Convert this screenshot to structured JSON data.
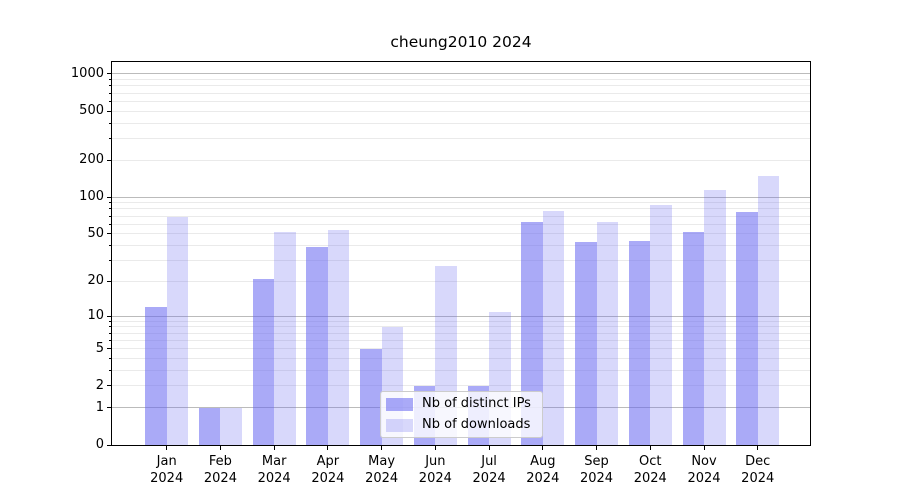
{
  "title": "cheung2010 2024",
  "chart_data": {
    "type": "bar",
    "title": "cheung2010 2024",
    "categories": [
      "Jan 2024",
      "Feb 2024",
      "Mar 2024",
      "Apr 2024",
      "May 2024",
      "Jun 2024",
      "Jul 2024",
      "Aug 2024",
      "Sep 2024",
      "Oct 2024",
      "Nov 2024",
      "Dec 2024"
    ],
    "series": [
      {
        "name": "Nb of distinct IPs",
        "color": "rgba(100,100,240,0.55)",
        "values": [
          12,
          1,
          21,
          39,
          5,
          2,
          2,
          63,
          43,
          44,
          52,
          75
        ]
      },
      {
        "name": "Nb of downloads",
        "color": "rgba(100,100,240,0.25)",
        "values": [
          69,
          1,
          52,
          54,
          8,
          27,
          11,
          77,
          62,
          87,
          114,
          150
        ]
      }
    ],
    "yscale": "log10(1+v)",
    "ylim": [
      0,
      1250
    ],
    "yticks": [
      0,
      1,
      2,
      5,
      10,
      20,
      50,
      100,
      200,
      500,
      1000
    ],
    "grid": "horizontal major at powers of 10, minor at 2-9 per decade",
    "legend_position": "lower center"
  },
  "colors": {
    "bar_base": "#6464f0",
    "major_grid": "#bbbbbb",
    "minor_grid": "#eaeaea",
    "axis": "#000000",
    "background": "#ffffff",
    "legend_border": "#cccccc"
  }
}
